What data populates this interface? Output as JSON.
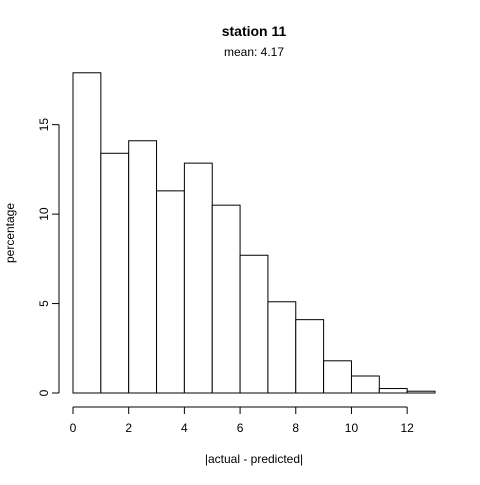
{
  "chart_data": {
    "type": "bar",
    "title": "station 11",
    "subtitle": "mean: 4.17",
    "xlabel": "|actual - predicted|",
    "ylabel": "percentage",
    "bin_edges": [
      0,
      1,
      2,
      3,
      4,
      5,
      6,
      7,
      8,
      9,
      10,
      11,
      12,
      13
    ],
    "values": [
      17.9,
      13.4,
      14.1,
      11.3,
      12.85,
      10.5,
      7.7,
      5.1,
      4.1,
      1.8,
      0.95,
      0.25,
      0.1
    ],
    "xlim": [
      0,
      13
    ],
    "ylim": [
      0,
      18
    ],
    "x_ticks": [
      0,
      2,
      4,
      6,
      8,
      10,
      12
    ],
    "x_tick_labels": [
      "0",
      "2",
      "4",
      "6",
      "8",
      "10",
      "12"
    ],
    "y_ticks": [
      0,
      5,
      10,
      15
    ],
    "y_tick_labels": [
      "0",
      "5",
      "10",
      "15"
    ],
    "grid": false,
    "bar_fill": "#ffffff",
    "bar_stroke": "#000000"
  }
}
